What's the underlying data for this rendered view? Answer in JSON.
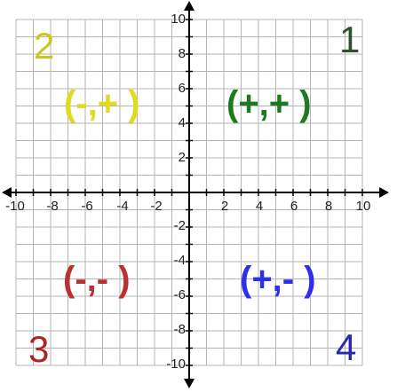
{
  "diagram": {
    "x_ticks": [
      "-10",
      "-8",
      "-6",
      "-4",
      "-2",
      "2",
      "4",
      "6",
      "8",
      "10"
    ],
    "y_ticks": [
      "10",
      "8",
      "6",
      "4",
      "2",
      "-2",
      "-4",
      "-6",
      "-8",
      "-10"
    ],
    "x_range": [
      -10,
      10
    ],
    "y_range": [
      -10,
      10
    ],
    "grid": true
  },
  "quadrants": [
    {
      "number": "1",
      "signs": "(+,+ )",
      "color": "#2f4f2f",
      "sign_color": "#1f7a1f"
    },
    {
      "number": "2",
      "signs": "(-,+ )",
      "color": "#c8c81e",
      "sign_color": "#e0dc1c"
    },
    {
      "number": "3",
      "signs": "(-,- )",
      "color": "#b22222",
      "sign_color": "#b83232"
    },
    {
      "number": "4",
      "signs": "(+,- )",
      "color": "#2a2aa8",
      "sign_color": "#2e2ef0"
    }
  ]
}
